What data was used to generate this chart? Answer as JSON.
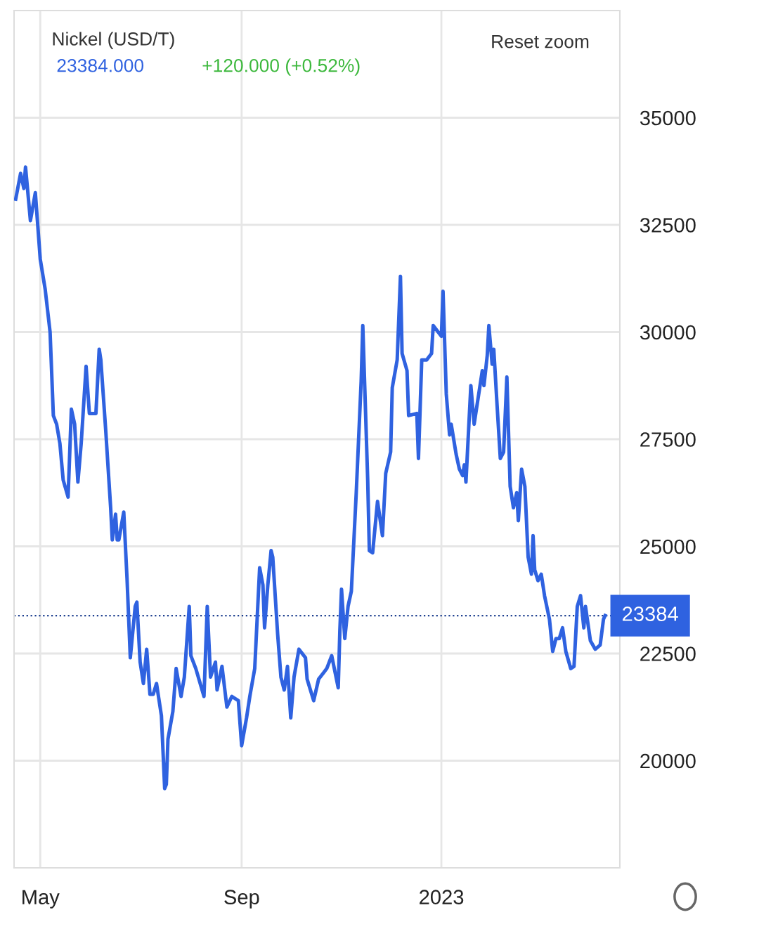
{
  "chart_data": {
    "type": "line",
    "title": "Nickel (USD/T)",
    "annotations": [
      "23384.000",
      "+120.000 (+0.52%)",
      "Reset zoom"
    ],
    "series": [
      {
        "color": "#2f62e0",
        "x": [
          "2022-04-16",
          "2022-04-19",
          "2022-04-21",
          "2022-04-22",
          "2022-04-25",
          "2022-04-28",
          "2022-05-01",
          "2022-05-04",
          "2022-05-07",
          "2022-05-09",
          "2022-05-11",
          "2022-05-13",
          "2022-05-15",
          "2022-05-18",
          "2022-05-20",
          "2022-05-22",
          "2022-05-24",
          "2022-05-26",
          "2022-05-29",
          "2022-05-31",
          "2022-06-04",
          "2022-06-06",
          "2022-06-07",
          "2022-06-10",
          "2022-06-13",
          "2022-06-14",
          "2022-06-16",
          "2022-06-17",
          "2022-06-18",
          "2022-06-21",
          "2022-06-23",
          "2022-06-25",
          "2022-06-28",
          "2022-06-29",
          "2022-07-01",
          "2022-07-03",
          "2022-07-05",
          "2022-07-07",
          "2022-07-09",
          "2022-07-11",
          "2022-07-14",
          "2022-07-16",
          "2022-07-17",
          "2022-07-18",
          "2022-07-21",
          "2022-07-23",
          "2022-07-26",
          "2022-07-28",
          "2022-07-31",
          "2022-08-01",
          "2022-08-04",
          "2022-08-09",
          "2022-08-11",
          "2022-08-13",
          "2022-08-16",
          "2022-08-17",
          "2022-08-20",
          "2022-08-23",
          "2022-08-26",
          "2022-08-30",
          "2022-09-01",
          "2022-09-04",
          "2022-09-06",
          "2022-09-09",
          "2022-09-12",
          "2022-09-14",
          "2022-09-15",
          "2022-09-17",
          "2022-09-19",
          "2022-09-20",
          "2022-09-23",
          "2022-09-25",
          "2022-09-27",
          "2022-09-29",
          "2022-10-01",
          "2022-10-03",
          "2022-10-06",
          "2022-10-10",
          "2022-10-11",
          "2022-10-15",
          "2022-10-18",
          "2022-10-21",
          "2022-10-23",
          "2022-10-26",
          "2022-10-30",
          "2022-10-31",
          "2022-11-01",
          "2022-11-03",
          "2022-11-05",
          "2022-11-07",
          "2022-11-10",
          "2022-11-13",
          "2022-11-14",
          "2022-11-17",
          "2022-11-18",
          "2022-11-20",
          "2022-11-23",
          "2022-11-26",
          "2022-11-28",
          "2022-12-01",
          "2022-12-02",
          "2022-12-05",
          "2022-12-07",
          "2022-12-08",
          "2022-12-11",
          "2022-12-12",
          "2022-12-17",
          "2022-12-18",
          "2022-12-20",
          "2022-12-23",
          "2022-12-26",
          "2022-12-27",
          "2023-01-01",
          "2023-01-02",
          "2023-01-04",
          "2023-01-06",
          "2023-01-07",
          "2023-01-10",
          "2023-01-12",
          "2023-01-14",
          "2023-01-15",
          "2023-01-16",
          "2023-01-19",
          "2023-01-21",
          "2023-01-26",
          "2023-01-27",
          "2023-01-29",
          "2023-01-30",
          "2023-02-01",
          "2023-02-02",
          "2023-02-04",
          "2023-02-06",
          "2023-02-08",
          "2023-02-10",
          "2023-02-12",
          "2023-02-14",
          "2023-02-16",
          "2023-02-17",
          "2023-02-19",
          "2023-02-21",
          "2023-02-23",
          "2023-02-25",
          "2023-02-26",
          "2023-02-27",
          "2023-03-01",
          "2023-03-03",
          "2023-03-05",
          "2023-03-08",
          "2023-03-10",
          "2023-03-12",
          "2023-03-14",
          "2023-03-16",
          "2023-03-18",
          "2023-03-21",
          "2023-03-23",
          "2023-03-25",
          "2023-03-27",
          "2023-03-29",
          "2023-03-30",
          "2023-04-02",
          "2023-04-05",
          "2023-04-08",
          "2023-04-10",
          "2023-04-11"
        ],
        "values": [
          33100,
          33700,
          33350,
          33850,
          32600,
          33250,
          31700,
          31000,
          30000,
          28050,
          27850,
          27400,
          26550,
          26150,
          28200,
          27850,
          26500,
          27400,
          29200,
          28100,
          28100,
          29600,
          29350,
          27700,
          25900,
          25150,
          25750,
          25150,
          25150,
          25800,
          24250,
          22400,
          23600,
          23700,
          22300,
          21800,
          22600,
          21550,
          21550,
          21800,
          21050,
          19350,
          19450,
          20500,
          21150,
          22150,
          21500,
          21950,
          23600,
          22450,
          22150,
          21500,
          23600,
          21950,
          22300,
          21650,
          22200,
          21250,
          21500,
          21400,
          20350,
          21000,
          21500,
          22150,
          24500,
          24100,
          23100,
          24100,
          24900,
          24750,
          22950,
          21950,
          21650,
          22200,
          21000,
          21950,
          22600,
          22400,
          21900,
          21400,
          21900,
          22050,
          22150,
          22450,
          21700,
          23050,
          24000,
          22850,
          23600,
          23950,
          26250,
          28850,
          30150,
          26550,
          24900,
          24850,
          26050,
          25250,
          26700,
          27200,
          28700,
          29350,
          31300,
          29500,
          29100,
          28050,
          28100,
          27050,
          29350,
          29350,
          29500,
          30150,
          29900,
          30950,
          28550,
          27600,
          27850,
          27150,
          26800,
          26650,
          26900,
          26500,
          28750,
          27850,
          29100,
          28750,
          29450,
          30150,
          29250,
          29600,
          28300,
          27050,
          27200,
          28950,
          26400,
          25900,
          26250,
          25600,
          26800,
          26400,
          24750,
          24350,
          25250,
          24450,
          24200,
          24350,
          23850,
          23300,
          22550,
          22850,
          22850,
          23100,
          22550,
          22150,
          22200,
          23600,
          23850,
          23100,
          23600,
          22800,
          22600,
          22700,
          23300,
          23384
        ]
      }
    ],
    "xlim": [
      "2022-04-15",
      "2023-04-20"
    ],
    "xticks": [
      {
        "value": "2022-05-01",
        "label": "May"
      },
      {
        "value": "2022-09-01",
        "label": "Sep"
      },
      {
        "value": "2023-01-01",
        "label": "2023"
      }
    ],
    "ylim": [
      17500,
      37500
    ],
    "yticks": [
      20000,
      22500,
      25000,
      27500,
      30000,
      32500,
      35000
    ],
    "ref_lines": [
      {
        "axis": "y",
        "value": 23384,
        "label": "23384",
        "color": "#1d3f8f",
        "line_style": "dotted"
      }
    ],
    "grid": true,
    "legend": false,
    "marker": "none",
    "line_style": "solid"
  }
}
